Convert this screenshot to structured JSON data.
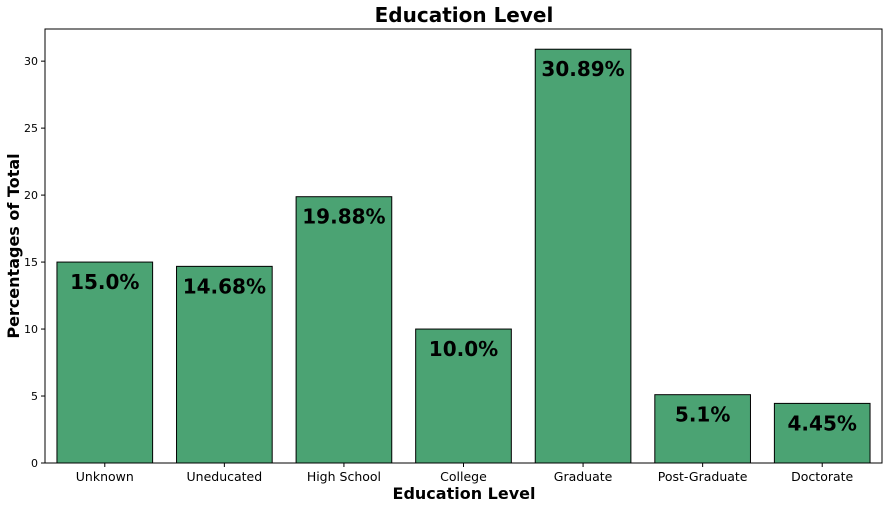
{
  "chart_data": {
    "type": "bar",
    "title": "Education Level",
    "xlabel": "Education Level",
    "ylabel": "Percentages of Total",
    "categories": [
      "Unknown",
      "Uneducated",
      "High School",
      "College",
      "Graduate",
      "Post-Graduate",
      "Doctorate"
    ],
    "values": [
      15.0,
      14.68,
      19.88,
      10.0,
      30.89,
      5.1,
      4.45
    ],
    "data_labels": [
      "15.0%",
      "14.68%",
      "19.88%",
      "10.0%",
      "30.89%",
      "5.1%",
      "4.45%"
    ],
    "ylim": [
      0,
      32.4
    ],
    "yticks": [
      0,
      5,
      10,
      15,
      20,
      25,
      30
    ],
    "bar_color": "#4ba373",
    "grid": false,
    "legend": "none"
  }
}
